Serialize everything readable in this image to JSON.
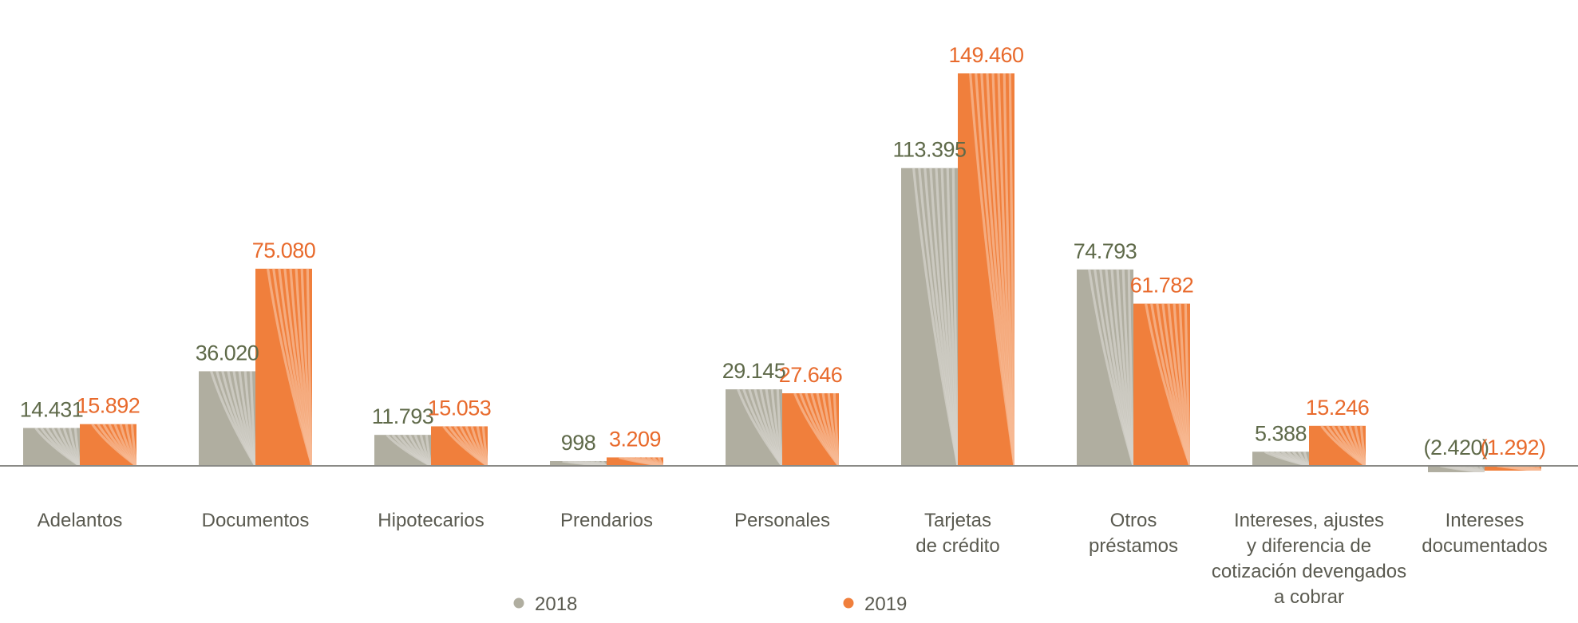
{
  "chart_data": {
    "type": "bar",
    "categories": [
      [
        "Adelantos"
      ],
      [
        "Documentos"
      ],
      [
        "Hipotecarios"
      ],
      [
        "Prendarios"
      ],
      [
        "Personales"
      ],
      [
        "Tarjetas",
        "de crédito"
      ],
      [
        "Otros",
        "préstamos"
      ],
      [
        "Intereses, ajustes",
        "y diferencia de",
        "cotización devengados",
        "a cobrar"
      ],
      [
        "Intereses",
        "documentados"
      ]
    ],
    "series": [
      {
        "name": "2018",
        "color": "#b0aea0",
        "values": [
          14431,
          36020,
          11793,
          998,
          29145,
          113395,
          74793,
          5388,
          -2420
        ],
        "labels": [
          "14.431",
          "36.020",
          "11.793",
          "998",
          "29.145",
          "113.395",
          "74.793",
          "5.388",
          "(2.420)"
        ]
      },
      {
        "name": "2019",
        "color": "#f07f3c",
        "values": [
          15892,
          75080,
          15053,
          3209,
          27646,
          149460,
          61782,
          15246,
          -1292
        ],
        "labels": [
          "15.892",
          "75.080",
          "15.053",
          "3.209",
          "27.646",
          "149.460",
          "61.782",
          "15.246",
          "(1.292)"
        ]
      }
    ],
    "label_colors": {
      "2018": "#5f6a4a",
      "2019": "#e86a2c"
    },
    "axis_color": "#8a8a86",
    "ylim": [
      -3000,
      160000
    ],
    "grid": false,
    "legend_position": "bottom-center"
  },
  "legend": {
    "items": [
      {
        "label": "2018",
        "color": "#b0aea0"
      },
      {
        "label": "2019",
        "color": "#f07f3c"
      }
    ]
  }
}
